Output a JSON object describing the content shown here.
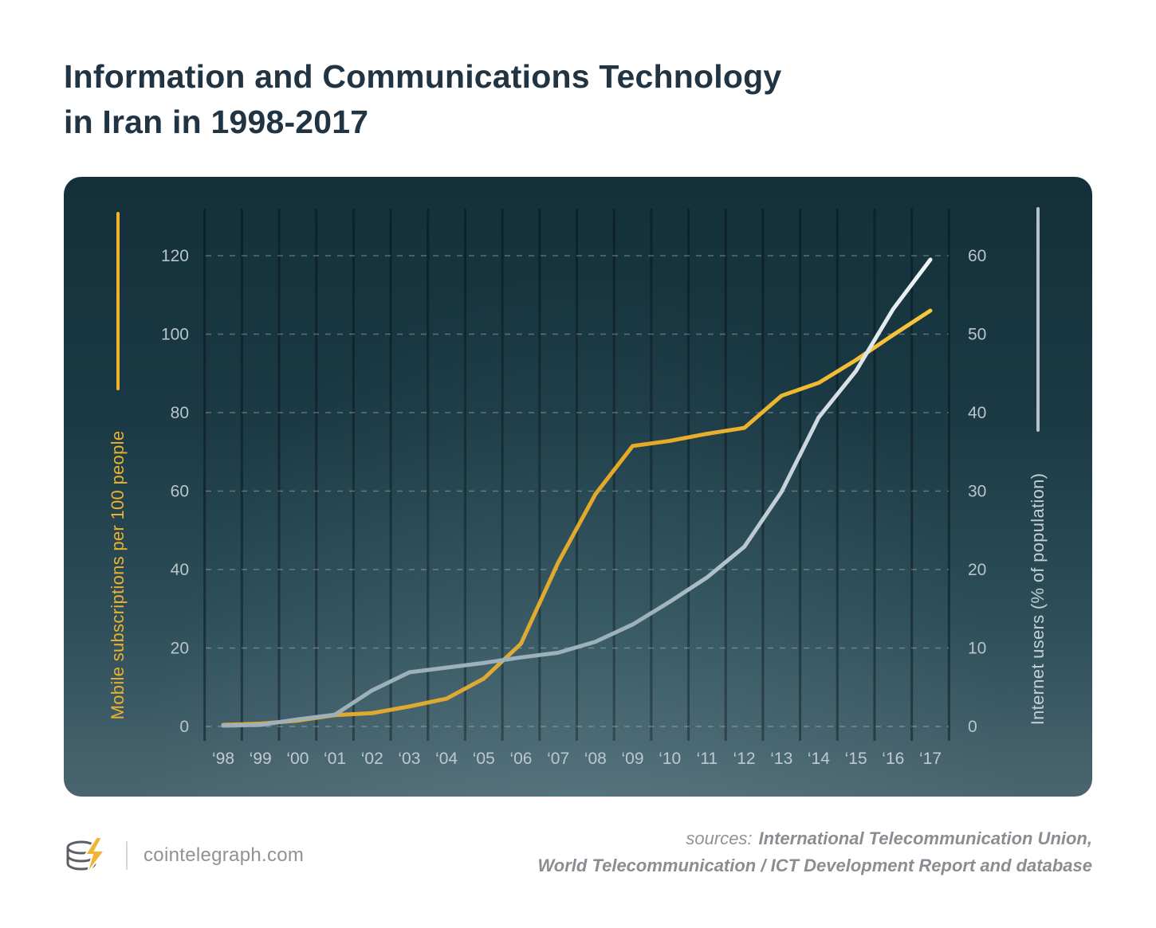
{
  "title": {
    "line1": "Information and Communications Technology",
    "line2": "in Iran in 1998-2017"
  },
  "footer": {
    "site": "cointelegraph.com",
    "sources_label": "sources:",
    "sources_line1": "International Telecommunication Union,",
    "sources_line2": "World Telecommunication / ICT Development Report and database"
  },
  "chart_data": {
    "type": "line",
    "title": "Information and Communications Technology in Iran in 1998-2017",
    "grid": "dashed horizontal",
    "background": "dark teal gradient with vertical year columns",
    "x_labels": [
      "‘98",
      "‘99",
      "‘00",
      "‘01",
      "‘02",
      "‘03",
      "‘04",
      "‘05",
      "‘06",
      "‘07",
      "‘08",
      "‘09",
      "‘10",
      "‘11",
      "‘12",
      "‘13",
      "‘14",
      "‘15",
      "‘16",
      "‘17"
    ],
    "left_axis": {
      "label": "Mobile subscriptions per 100 people",
      "ticks": [
        0,
        20,
        40,
        60,
        80,
        100,
        120
      ],
      "range": [
        0,
        130
      ],
      "color": "#efb22a"
    },
    "right_axis": {
      "label": "Internet users (% of population)",
      "ticks": [
        0,
        10,
        20,
        30,
        40,
        50,
        60
      ],
      "range": [
        0,
        65
      ],
      "color": "#c3ced6"
    },
    "series": [
      {
        "name": "Mobile subscriptions per 100 people",
        "axis": "left",
        "color": "#e9a91f",
        "color_end": "#f6c73d",
        "values": [
          0.4,
          0.7,
          1.5,
          2.9,
          3.4,
          5.1,
          7.1,
          12.2,
          21.1,
          41.8,
          59.2,
          71.5,
          72.8,
          74.6,
          76.1,
          84.3,
          87.6,
          93.4,
          99.8,
          106.0
        ]
      },
      {
        "name": "Internet users (% of population)",
        "axis": "right",
        "color": "#9fb1bb",
        "color_end": "#f1f6f9",
        "values": [
          0.1,
          0.2,
          0.9,
          1.5,
          4.6,
          6.9,
          7.5,
          8.1,
          8.8,
          9.4,
          10.8,
          13.0,
          15.9,
          19.0,
          22.9,
          29.9,
          39.4,
          45.3,
          53.2,
          59.5
        ]
      }
    ]
  }
}
